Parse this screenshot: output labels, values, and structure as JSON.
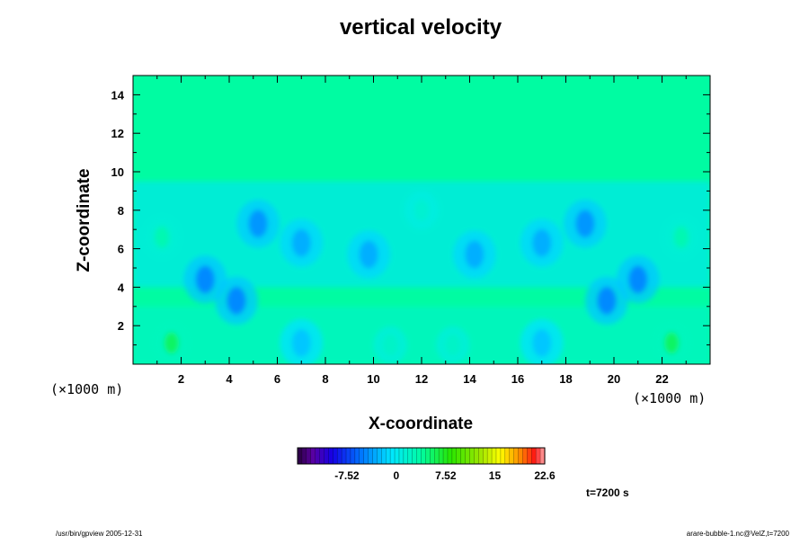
{
  "chart_data": {
    "type": "heatmap",
    "title": "vertical velocity",
    "xlabel": "X-coordinate",
    "ylabel": "Z-coordinate",
    "x_unit": "(×1000 m)",
    "y_unit": "(×1000 m)",
    "xlim": [
      0,
      24
    ],
    "ylim": [
      0,
      15
    ],
    "x_ticks": [
      2,
      4,
      6,
      8,
      10,
      12,
      14,
      16,
      18,
      20,
      22
    ],
    "y_ticks": [
      2,
      4,
      6,
      8,
      10,
      12,
      14
    ],
    "colorbar": {
      "range": [
        -15.04,
        22.6
      ],
      "tick_values": [
        -7.52,
        0,
        7.52,
        15,
        22.6
      ],
      "tick_labels": [
        "-7.52",
        "0",
        "7.52",
        "15",
        "22.6"
      ]
    },
    "background_value": 0,
    "features": [
      {
        "x": 1.6,
        "z": 1.1,
        "w": 5.5,
        "kind": "updraft"
      },
      {
        "x": 1.2,
        "z": 6.6,
        "w": 3.0,
        "kind": "updraft"
      },
      {
        "x": 3.0,
        "z": 4.4,
        "w": -4.5,
        "kind": "downdraft"
      },
      {
        "x": 4.3,
        "z": 3.3,
        "w": -4.5,
        "kind": "downdraft"
      },
      {
        "x": 5.2,
        "z": 7.3,
        "w": -4.0,
        "kind": "downdraft"
      },
      {
        "x": 7.0,
        "z": 6.3,
        "w": -3.0,
        "kind": "downdraft"
      },
      {
        "x": 9.8,
        "z": 5.7,
        "w": -3.0,
        "kind": "downdraft"
      },
      {
        "x": 7.0,
        "z": 1.1,
        "w": -2.0,
        "kind": "downdraft"
      },
      {
        "x": 10.7,
        "z": 1.0,
        "w": 2.0,
        "kind": "updraft"
      },
      {
        "x": 12.0,
        "z": 8.0,
        "w": 1.5,
        "kind": "updraft"
      },
      {
        "x": 13.3,
        "z": 1.0,
        "w": 2.0,
        "kind": "updraft"
      },
      {
        "x": 14.2,
        "z": 5.7,
        "w": -3.0,
        "kind": "downdraft"
      },
      {
        "x": 17.0,
        "z": 6.3,
        "w": -3.0,
        "kind": "downdraft"
      },
      {
        "x": 17.0,
        "z": 1.1,
        "w": -2.0,
        "kind": "downdraft"
      },
      {
        "x": 18.8,
        "z": 7.3,
        "w": -4.0,
        "kind": "downdraft"
      },
      {
        "x": 19.7,
        "z": 3.3,
        "w": -4.5,
        "kind": "downdraft"
      },
      {
        "x": 21.0,
        "z": 4.4,
        "w": -4.5,
        "kind": "downdraft"
      },
      {
        "x": 22.8,
        "z": 6.6,
        "w": 3.0,
        "kind": "updraft"
      },
      {
        "x": 22.4,
        "z": 1.1,
        "w": 5.5,
        "kind": "updraft"
      }
    ]
  },
  "footer": {
    "time_label": "t=7200 s",
    "left_note": "/usr/bin/gpview 2005-12-31",
    "right_note": "arare-bubble-1.nc@VelZ,t=7200"
  }
}
